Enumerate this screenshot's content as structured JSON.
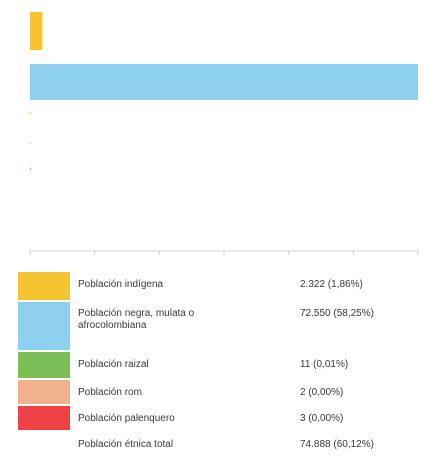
{
  "chart_data": {
    "type": "bar",
    "orientation": "horizontal",
    "grid": false,
    "legend_position": "bottom",
    "series": [
      {
        "name": "Población indígena",
        "value": 2322,
        "display": "2.322 (1,86%)",
        "color": "#f5c431"
      },
      {
        "name": "Población negra, mulata o afrocolombiana",
        "value": 72550,
        "display": "72.550 (58,25%)",
        "color": "#8fd0ee"
      },
      {
        "name": "Población raizal",
        "value": 11,
        "display": "11 (0,01%)",
        "color": "#7cbf57"
      },
      {
        "name": "Población rom",
        "value": 2,
        "display": "2 (0,00%)",
        "color": "#f2b18e"
      },
      {
        "name": "Población palenquero",
        "value": 3,
        "display": "3 (0,00%)",
        "color": "#ee4248"
      },
      {
        "name": "Población étnica total",
        "value": 74888,
        "display": "74.888 (60,12%)",
        "color": ""
      }
    ]
  }
}
